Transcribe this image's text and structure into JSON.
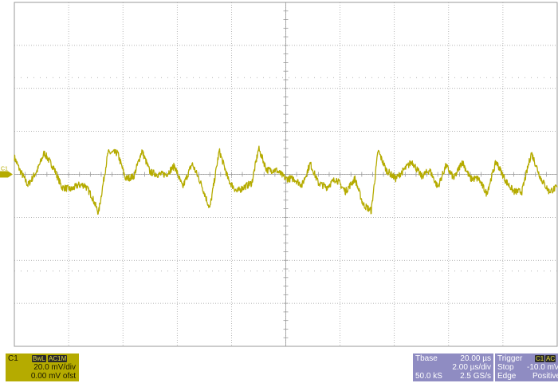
{
  "colors": {
    "trace": "#b5ab00",
    "grid": "#9a9a9a",
    "background": "#ffffff",
    "channel_box": "#b5ab00",
    "timebase_box": "#8f8cc2"
  },
  "plot": {
    "channel_marker": "C1",
    "divisions_x": 10,
    "divisions_y": 8
  },
  "channel": {
    "name": "C1",
    "badge_bw": "BwL",
    "badge_coupling": "AC1M",
    "scale": "20.0 mV/div",
    "offset": "0.00 mV ofst"
  },
  "timebase": {
    "label": "Tbase",
    "delay": "20.00 µs",
    "scale": "2.00 µs/div",
    "samples": "50.0 kS",
    "rate": "2.5 GS/s"
  },
  "trigger": {
    "label": "Trigger",
    "source_badge": "C1",
    "coupling_badge": "AC",
    "mode": "Stop",
    "level": "-10.0 mV",
    "type": "Edge",
    "slope": "Positive"
  },
  "chart_data": {
    "type": "line",
    "title": "",
    "xlabel": "",
    "ylabel": "",
    "xlim": [
      0,
      20
    ],
    "ylim": [
      -80,
      80
    ],
    "grid": true,
    "series": [
      {
        "x": [
          0,
          0.2,
          0.5,
          0.85,
          1.1,
          1.45,
          1.75,
          2.1,
          2.35,
          2.6,
          2.85,
          3.1,
          3.45,
          3.8,
          4.1,
          4.4,
          4.7,
          5.0,
          5.3,
          5.6,
          5.9,
          6.2,
          6.55,
          6.9,
          7.2,
          7.55,
          7.9,
          8.2,
          8.45,
          8.75,
          9.0,
          9.3,
          9.65,
          10.0,
          10.3,
          10.6,
          10.9,
          11.2,
          11.5,
          11.85,
          12.2,
          12.55,
          12.85,
          13.15,
          13.4,
          13.7,
          14.05,
          14.35,
          14.65,
          15.0,
          15.3,
          15.6,
          15.9,
          16.2,
          16.5,
          16.8,
          17.1,
          17.4,
          17.75,
          18.1,
          18.4,
          18.7,
          19.05,
          19.4,
          19.7,
          20.0
        ],
        "y": [
          8,
          2,
          -5,
          2,
          10,
          3,
          -6,
          -7,
          -5,
          -5,
          -10,
          -18,
          10,
          10,
          -2,
          -1,
          11,
          1,
          0,
          0,
          4,
          -6,
          5,
          -5,
          -16,
          11,
          -3,
          -8,
          -6,
          -4,
          12,
          2,
          2,
          -2,
          -2,
          -5,
          5,
          -4,
          -6,
          -2,
          -8,
          -2,
          -14,
          -17,
          11,
          2,
          -2,
          2,
          6,
          -1,
          2,
          -6,
          4,
          -2,
          6,
          -2,
          -2,
          -9,
          6,
          -3,
          -8,
          -8,
          10,
          -2,
          -8,
          -6
        ]
      }
    ]
  }
}
